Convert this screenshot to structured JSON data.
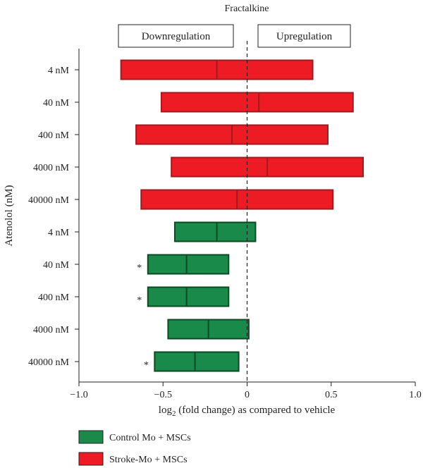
{
  "chart_data": {
    "type": "bar",
    "subtype": "floating-box",
    "title": "Fractalkine",
    "xlabel_prefix": "log",
    "xlabel_sub": "2",
    "xlabel_suffix": " (fold change) as compared to vehicle",
    "ylabel": "Atenolol (nM)",
    "xlim": [
      -1.0,
      1.0
    ],
    "x_ticks": [
      "−1.0",
      "−0.5",
      "0",
      "0.5",
      "1.0"
    ],
    "x_tick_values": [
      -1.0,
      -0.5,
      0,
      0.5,
      1.0
    ],
    "reference_line": 0,
    "region_labels": {
      "down": "Downregulation",
      "up": "Upregulation"
    },
    "categories": [
      "4 nM",
      "40 nM",
      "400 nM",
      "4000 nM",
      "40000 nM",
      "4 nM",
      "40 nM",
      "400 nM",
      "4000 nM",
      "40000 nM"
    ],
    "series": [
      {
        "name": "Stroke-Mo + MSCs",
        "color": "#ed1c24",
        "edge_color": "#a01a1f",
        "rows": [
          {
            "label": "4 nM",
            "low": -0.75,
            "mid": -0.18,
            "high": 0.39,
            "sig": false
          },
          {
            "label": "40 nM",
            "low": -0.51,
            "mid": 0.07,
            "high": 0.63,
            "sig": false
          },
          {
            "label": "400 nM",
            "low": -0.66,
            "mid": -0.09,
            "high": 0.48,
            "sig": false
          },
          {
            "label": "4000 nM",
            "low": -0.45,
            "mid": 0.12,
            "high": 0.69,
            "sig": false
          },
          {
            "label": "40000 nM",
            "low": -0.63,
            "mid": -0.06,
            "high": 0.51,
            "sig": false
          }
        ]
      },
      {
        "name": "Control Mo + MSCs",
        "color": "#1a8a4a",
        "edge_color": "#0b4a22",
        "rows": [
          {
            "label": "4 nM",
            "low": -0.43,
            "mid": -0.18,
            "high": 0.05,
            "sig": false
          },
          {
            "label": "40 nM",
            "low": -0.59,
            "mid": -0.36,
            "high": -0.11,
            "sig": true
          },
          {
            "label": "400 nM",
            "low": -0.59,
            "mid": -0.36,
            "high": -0.11,
            "sig": true
          },
          {
            "label": "4000 nM",
            "low": -0.47,
            "mid": -0.23,
            "high": 0.01,
            "sig": false
          },
          {
            "label": "40000 nM",
            "low": -0.55,
            "mid": -0.31,
            "high": -0.05,
            "sig": true
          }
        ]
      }
    ],
    "significance_marker": "*",
    "legend": [
      {
        "label": "Control Mo + MSCs",
        "color": "#1a8a4a"
      },
      {
        "label": "Stroke-Mo + MSCs",
        "color": "#ed1c24"
      }
    ],
    "legend_position": "bottom-left",
    "grid": false
  }
}
